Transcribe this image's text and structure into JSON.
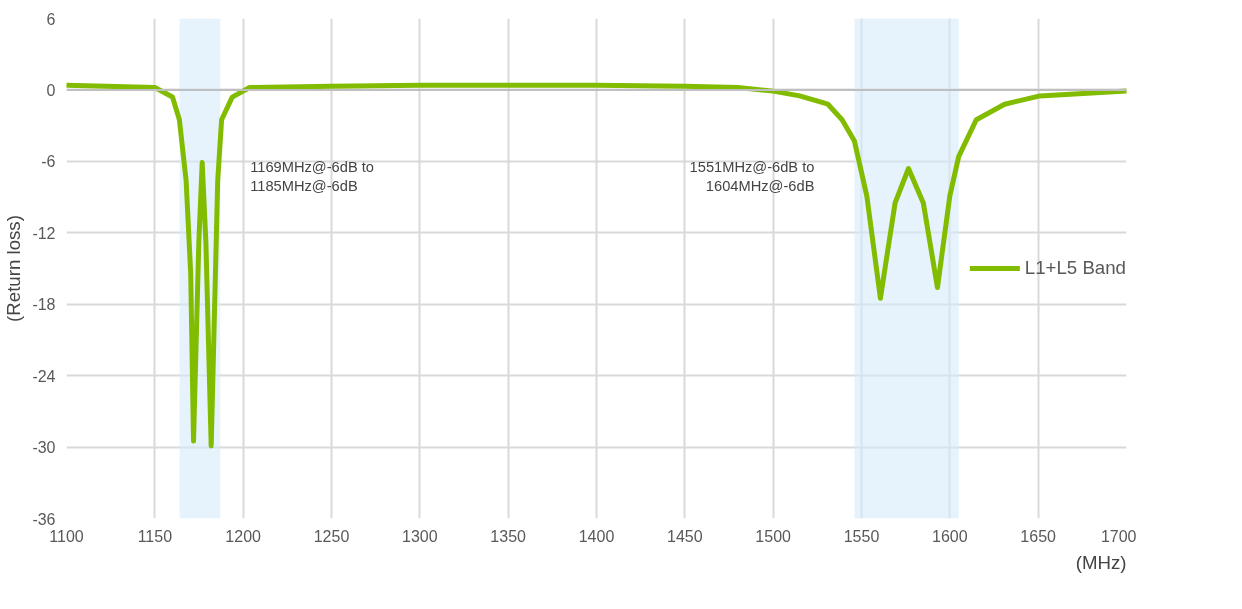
{
  "chart_data": {
    "type": "line",
    "xlabel": "(MHz)",
    "ylabel": "(Return loss)",
    "x": [
      1100,
      1150,
      1160,
      1163.9,
      1167.7,
      1170.3,
      1171.9,
      1174.9,
      1176.8,
      1178.9,
      1181.9,
      1185.6,
      1187.8,
      1193.8,
      1203.6,
      1250,
      1300,
      1400,
      1450,
      1480,
      1500,
      1515,
      1531,
      1539,
      1546,
      1553,
      1560.7,
      1569,
      1576.6,
      1585,
      1593,
      1600,
      1605,
      1615,
      1631,
      1651,
      1700
    ],
    "series": [
      {
        "name": "L1+L5 Band",
        "color": "#82bc00",
        "values": [
          0.4,
          0.2,
          -0.6,
          -2.5,
          -7.6,
          -15.4,
          -29.5,
          -12.8,
          -6.1,
          -12.8,
          -29.9,
          -7.6,
          -2.5,
          -0.6,
          0.2,
          0.3,
          0.4,
          0.4,
          0.3,
          0.2,
          -0.1,
          -0.5,
          -1.2,
          -2.5,
          -4.3,
          -8.9,
          -17.5,
          -9.5,
          -6.6,
          -9.5,
          -16.6,
          -8.9,
          -5.6,
          -2.5,
          -1.2,
          -0.5,
          -0.1
        ]
      }
    ],
    "xlim": [
      1100,
      1700
    ],
    "xticks": [
      1100,
      1150,
      1200,
      1250,
      1300,
      1350,
      1400,
      1450,
      1500,
      1550,
      1600,
      1650,
      1700
    ],
    "ylim": [
      -36,
      6
    ],
    "yticks": [
      6,
      0,
      -6,
      -12,
      -18,
      -24,
      -30,
      -36
    ],
    "bands": [
      {
        "axis": "x",
        "from": 1164,
        "to": 1187,
        "color": "#d6ebfb",
        "label": "1169MHz@-6dB to\n1185MHz@-6dB"
      },
      {
        "axis": "x",
        "from": 1546,
        "to": 1605,
        "color": "#d6ebfb",
        "label": "1551MHz@-6dB to\n1604MHz@-6dB"
      }
    ],
    "ref_lines": [
      {
        "axis": "y",
        "value": 0,
        "color": "#bfbfbf"
      }
    ],
    "grid": true,
    "legend": "right",
    "marker": "none",
    "line_style": "solid"
  }
}
